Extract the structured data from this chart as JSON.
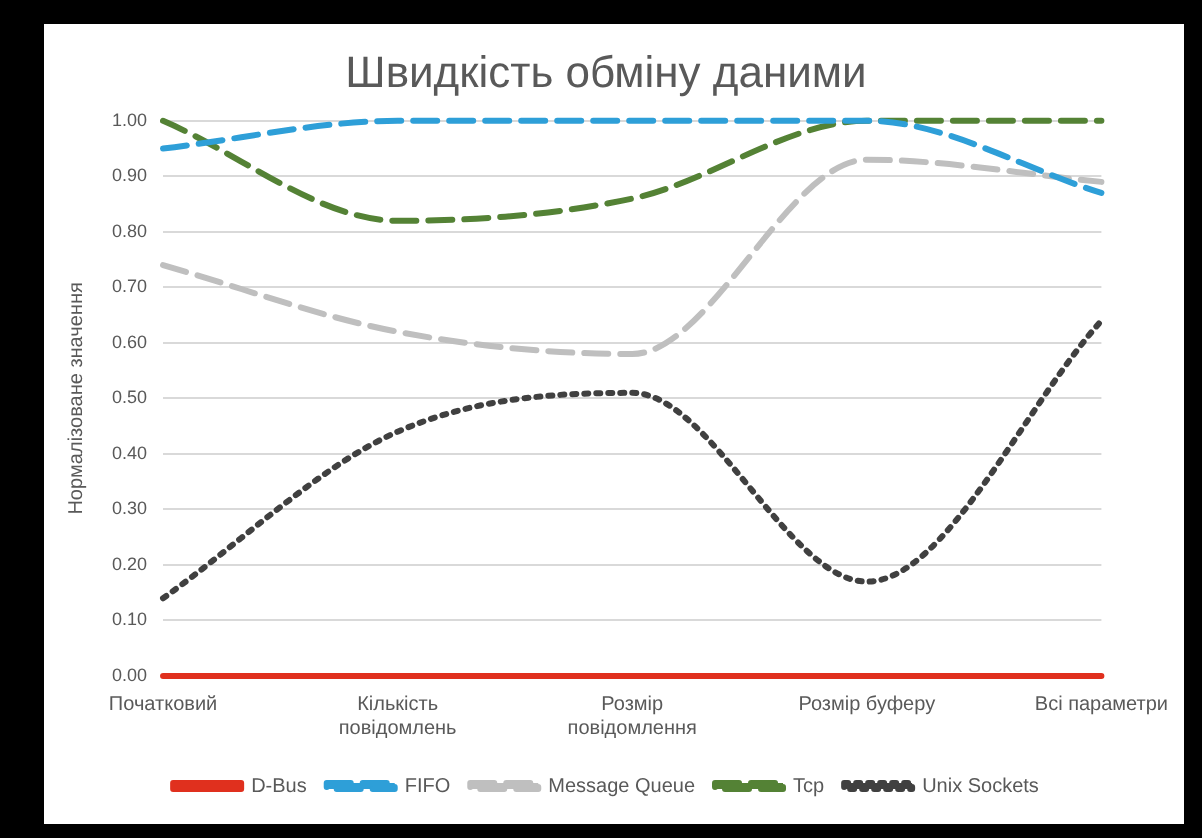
{
  "chart_data": {
    "type": "line",
    "title": "Швидкість обміну даними",
    "ylabel": "Нормалізоване значення",
    "categories": [
      "Початковий",
      "Кількість повідомлень",
      "Розмір повідомлення",
      "Розмір буферу",
      "Всі параметри"
    ],
    "series": [
      {
        "name": "D-Bus",
        "color": "#e0301e",
        "line_style": "solid",
        "values": [
          0,
          0,
          0,
          0,
          0
        ]
      },
      {
        "name": "FIFO",
        "color": "#2e9fd8",
        "line_style": "dashed",
        "values": [
          0.95,
          1.0,
          1.0,
          1.0,
          0.87
        ]
      },
      {
        "name": "Message Queue",
        "color": "#bfbfbf",
        "line_style": "dashed",
        "values": [
          0.74,
          0.62,
          0.58,
          0.93,
          0.89
        ]
      },
      {
        "name": "Tcp",
        "color": "#548235",
        "line_style": "dashed",
        "values": [
          1.0,
          0.82,
          0.86,
          1.0,
          1.0
        ]
      },
      {
        "name": "Unix Sockets",
        "color": "#404040",
        "line_style": "dotted",
        "values": [
          0.14,
          0.44,
          0.51,
          0.17,
          0.64
        ]
      }
    ],
    "ylim": [
      0,
      1
    ],
    "yticks": [
      {
        "value": 0,
        "label": "0.00"
      },
      {
        "value": 0.1,
        "label": "0.10"
      },
      {
        "value": 0.2,
        "label": "0.20"
      },
      {
        "value": 0.3,
        "label": "0.30"
      },
      {
        "value": 0.4,
        "label": "0.40"
      },
      {
        "value": 0.5,
        "label": "0.50"
      },
      {
        "value": 0.6,
        "label": "0.60"
      },
      {
        "value": 0.7,
        "label": "0.70"
      },
      {
        "value": 0.8,
        "label": "0.80"
      },
      {
        "value": 0.9,
        "label": "0.90"
      },
      {
        "value": 1,
        "label": "1.00"
      }
    ],
    "grid": "y",
    "legend": "bottom",
    "marker": "none"
  }
}
